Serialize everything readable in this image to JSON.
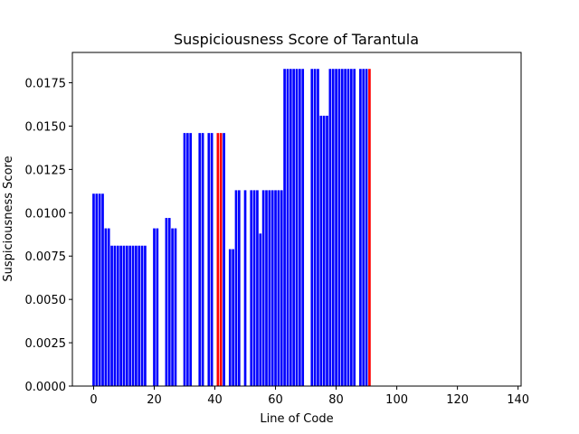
{
  "chart_data": {
    "type": "bar",
    "title": "Suspiciousness Score of Tarantula",
    "xlabel": "Line of Code",
    "ylabel": "Suspiciousness Score",
    "xlim": [
      -7,
      141
    ],
    "ylim": [
      0,
      0.01925
    ],
    "x_ticks": [
      0,
      20,
      40,
      60,
      80,
      100,
      120,
      140
    ],
    "x_tick_labels": [
      "0",
      "20",
      "40",
      "60",
      "80",
      "100",
      "120",
      "140"
    ],
    "y_ticks": [
      0,
      0.0025,
      0.005,
      0.0075,
      0.01,
      0.0125,
      0.015,
      0.0175
    ],
    "y_tick_labels": [
      "0.0000",
      "0.0025",
      "0.0050",
      "0.0075",
      "0.0100",
      "0.0125",
      "0.0150",
      "0.0175"
    ],
    "grid": false,
    "colors": {
      "default": "#0000ff",
      "highlight": "#ff0000",
      "axes": "#000000"
    },
    "series": [
      {
        "x": [
          0,
          1,
          2,
          3,
          4,
          5,
          6,
          7,
          8,
          9,
          10,
          11,
          12,
          13,
          14,
          15,
          16,
          17,
          18,
          19,
          20,
          21,
          22,
          23,
          24,
          25,
          26,
          27,
          28,
          29,
          30,
          31,
          32,
          33,
          34,
          35,
          36,
          37,
          38,
          39,
          40,
          41,
          42,
          43,
          44,
          45,
          46,
          47,
          48,
          49,
          50,
          51,
          52,
          53,
          54,
          55,
          56,
          57,
          58,
          59,
          60,
          61,
          62,
          63,
          64,
          65,
          66,
          67,
          68,
          69,
          70,
          71,
          72,
          73,
          74,
          75,
          76,
          77,
          78,
          79,
          80,
          81,
          82,
          83,
          84,
          85,
          86,
          87,
          88,
          89,
          90,
          91
        ],
        "values": [
          0.0111,
          0.0111,
          0.0111,
          0.0111,
          0.0091,
          0.0091,
          0.0081,
          0.0081,
          0.0081,
          0.0081,
          0.0081,
          0.0081,
          0.0081,
          0.0081,
          0.0081,
          0.0081,
          0.0081,
          0.0081,
          0,
          0,
          0.0091,
          0.0091,
          0,
          0,
          0.0097,
          0.0097,
          0.0091,
          0.0091,
          0,
          0,
          0.0146,
          0.0146,
          0.0146,
          0,
          0,
          0.0146,
          0.0146,
          0,
          0.0146,
          0.0146,
          0,
          0.0146,
          0.0146,
          0.0146,
          0,
          0.0079,
          0.0079,
          0.0113,
          0.0113,
          0,
          0.0113,
          0,
          0.0113,
          0.0113,
          0.0113,
          0.0088,
          0.0113,
          0.0113,
          0.0113,
          0.0113,
          0.0113,
          0.0113,
          0.0113,
          0.0183,
          0.0183,
          0.0183,
          0.0183,
          0.0183,
          0.0183,
          0.0183,
          0,
          0,
          0.0183,
          0.0183,
          0.0183,
          0.0156,
          0.0156,
          0.0156,
          0.0183,
          0.0183,
          0.0183,
          0.0183,
          0.0183,
          0.0183,
          0.0183,
          0.0183,
          0.0183,
          0,
          0.0183,
          0.0183,
          0.0183,
          0.0183
        ],
        "highlight_x": [
          41,
          42,
          91
        ]
      }
    ]
  }
}
